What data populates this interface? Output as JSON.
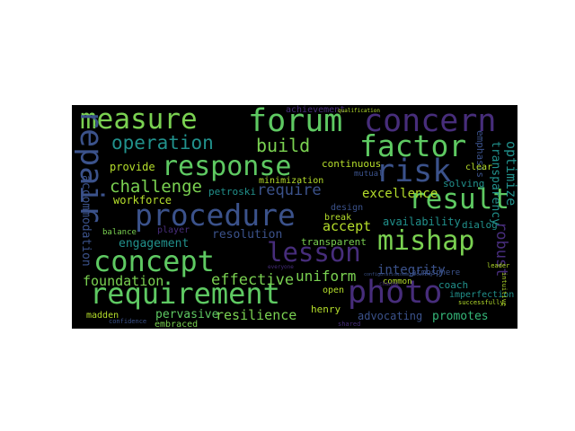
{
  "palette": {
    "green": "#5ec962",
    "light_green": "#7ad151",
    "teal": "#21918c",
    "blue": "#3b528b",
    "purple": "#472d7b",
    "dark_purple": "#440154",
    "yellow_green": "#b5de2b",
    "mint": "#35b779"
  },
  "words": {
    "measure": "measure",
    "forum": "forum",
    "concern": "concern",
    "operation": "operation",
    "factor": "factor",
    "response": "response",
    "build": "build",
    "risk": "risk",
    "result": "result",
    "repair": "repair",
    "procedure": "procedure",
    "challenge": "challenge",
    "require": "require",
    "lesson": "lesson",
    "mishap": "mishap",
    "concept": "concept",
    "requirement": "requirement",
    "photo": "photo",
    "effective": "effective",
    "uniform": "uniform",
    "foundation": "foundation",
    "engagement": "engagement",
    "resilience": "resilience",
    "pervasive": "pervasive",
    "integrity": "integrity",
    "accept": "accept",
    "excellence": "excellence",
    "robust": "robust",
    "optimize": "optimize",
    "transparency": "transparency",
    "emphasis": "emphasis",
    "achievement": "achievement",
    "continuous": "continuous",
    "minimization": "minimization",
    "petroski": "petroski",
    "workforce": "workforce",
    "provide": "provide",
    "design": "design",
    "break": "break",
    "availability": "availability",
    "dialog": "dialog",
    "resolution": "resolution",
    "transparent": "transparent",
    "accommodation": "accommodation",
    "player": "player",
    "balance": "balance",
    "coach": "coach",
    "open": "open",
    "henry": "henry",
    "madden": "madden",
    "embraced": "embraced",
    "advocating": "advocating",
    "promotes": "promotes",
    "imperfection": "imperfection",
    "successfully": "successfully",
    "common": "common",
    "atmosphere": "atmosphere",
    "solving": "solving",
    "clear": "clear",
    "mutual": "mutual",
    "confidence": "confidence",
    "shared": "shared",
    "leader": "leader",
    "intuitive": "intuitive",
    "qualification": "qualification",
    "change": "change",
    "configuration": "configuration",
    "communicating": "communicating",
    "everyone": "everyone"
  }
}
